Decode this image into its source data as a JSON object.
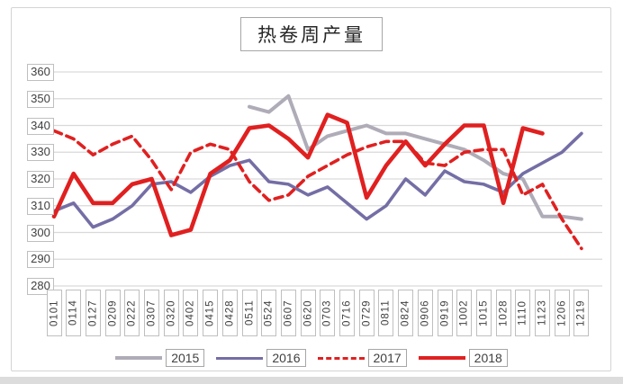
{
  "title": "热卷周产量",
  "chart_data": {
    "type": "line",
    "title": "热卷周产量",
    "xlabel": "",
    "ylabel": "",
    "ylim": [
      280,
      360
    ],
    "ytick_step": 10,
    "grid": true,
    "legend_position": "bottom",
    "categories": [
      "0101",
      "0114",
      "0127",
      "0209",
      "0222",
      "0307",
      "0320",
      "0402",
      "0415",
      "0428",
      "0511",
      "0524",
      "0607",
      "0620",
      "0703",
      "0716",
      "0729",
      "0811",
      "0824",
      "0906",
      "0919",
      "1002",
      "1015",
      "1028",
      "1110",
      "1123",
      "1206",
      "1219"
    ],
    "series": [
      {
        "name": "2015",
        "color": "#afacb8",
        "dash": "none",
        "width": 4,
        "values": [
          null,
          null,
          null,
          null,
          null,
          null,
          null,
          null,
          null,
          null,
          347,
          345,
          351,
          331,
          336,
          338,
          340,
          337,
          337,
          335,
          333,
          331,
          327,
          322,
          320,
          306,
          306,
          305
        ]
      },
      {
        "name": "2016",
        "color": "#746ea5",
        "dash": "none",
        "width": 3.6,
        "values": [
          308,
          311,
          302,
          305,
          310,
          318,
          319,
          315,
          321,
          325,
          327,
          319,
          318,
          314,
          317,
          311,
          305,
          310,
          320,
          314,
          323,
          319,
          318,
          315,
          322,
          326,
          330,
          337
        ]
      },
      {
        "name": "2017",
        "color": "#e02020",
        "dash": "9 6",
        "width": 3.6,
        "values": [
          338,
          335,
          329,
          333,
          336,
          327,
          316,
          330,
          333,
          331,
          319,
          312,
          314,
          321,
          325,
          329,
          332,
          334,
          334,
          326,
          325,
          330,
          331,
          331,
          314,
          318,
          305,
          294
        ]
      },
      {
        "name": "2018",
        "color": "#e02020",
        "dash": "none",
        "width": 4.6,
        "values": [
          306,
          322,
          311,
          311,
          318,
          320,
          299,
          301,
          322,
          327,
          339,
          340,
          335,
          328,
          344,
          341,
          313,
          325,
          334,
          325,
          333,
          340,
          340,
          311,
          339,
          337,
          null,
          null
        ]
      }
    ]
  },
  "legend": {
    "items": [
      "2015",
      "2016",
      "2017",
      "2018"
    ]
  },
  "colors": {
    "gridline": "#d9d9d9",
    "tick_box_border": "#bfbfbf",
    "text": "#404040"
  }
}
